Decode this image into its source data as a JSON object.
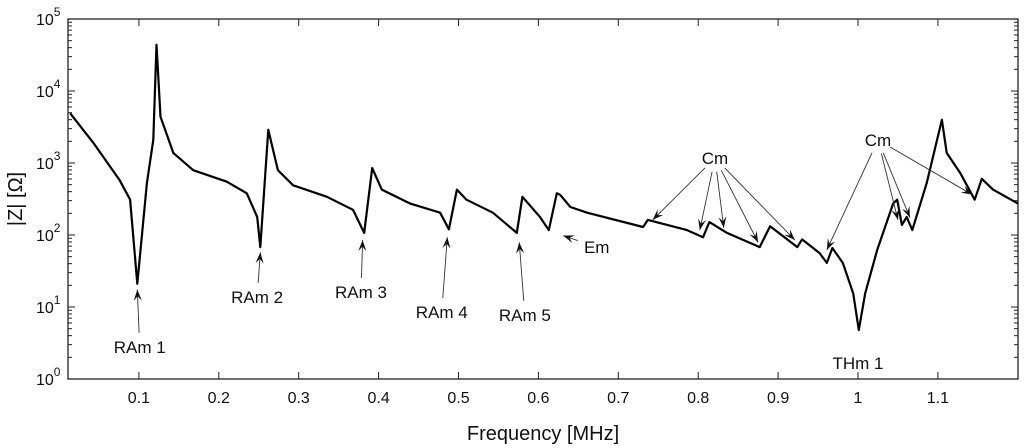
{
  "chart_data": {
    "type": "line",
    "xlabel": "Frequency [MHz]",
    "ylabel": "|Z| [Ω]",
    "xlim": [
      0.011,
      1.2
    ],
    "ylim": [
      1,
      100000
    ],
    "yscale": "log",
    "grid": false,
    "x_ticks": [
      0.1,
      0.2,
      0.3,
      0.4,
      0.5,
      0.6,
      0.7,
      0.8,
      0.9,
      1,
      1.1
    ],
    "x_tick_labels": [
      "0.1",
      "0.2",
      "0.3",
      "0.4",
      "0.5",
      "0.6",
      "0.7",
      "0.8",
      "0.9",
      "1",
      "1.1"
    ],
    "y_ticks": [
      {
        "base": "10",
        "exp": "0"
      },
      {
        "base": "10",
        "exp": "1"
      },
      {
        "base": "10",
        "exp": "2"
      },
      {
        "base": "10",
        "exp": "3"
      },
      {
        "base": "10",
        "exp": "4"
      },
      {
        "base": "10",
        "exp": "5"
      }
    ],
    "series": [
      {
        "color": "#000000",
        "points": [
          [
            0.014,
            4900
          ],
          [
            0.043,
            1900
          ],
          [
            0.076,
            575
          ],
          [
            0.089,
            310
          ],
          [
            0.098,
            21
          ],
          [
            0.11,
            525
          ],
          [
            0.118,
            2100
          ],
          [
            0.122,
            44000
          ],
          [
            0.127,
            4400
          ],
          [
            0.143,
            1380
          ],
          [
            0.168,
            795
          ],
          [
            0.21,
            550
          ],
          [
            0.235,
            380
          ],
          [
            0.248,
            178
          ],
          [
            0.252,
            68
          ],
          [
            0.262,
            2900
          ],
          [
            0.274,
            795
          ],
          [
            0.293,
            490
          ],
          [
            0.335,
            340
          ],
          [
            0.368,
            224
          ],
          [
            0.382,
            107
          ],
          [
            0.392,
            850
          ],
          [
            0.404,
            427
          ],
          [
            0.439,
            275
          ],
          [
            0.477,
            204
          ],
          [
            0.488,
            120
          ],
          [
            0.498,
            427
          ],
          [
            0.51,
            309
          ],
          [
            0.543,
            204
          ],
          [
            0.573,
            107
          ],
          [
            0.58,
            339
          ],
          [
            0.602,
            178
          ],
          [
            0.613,
            117
          ],
          [
            0.623,
            380
          ],
          [
            0.627,
            363
          ],
          [
            0.64,
            245
          ],
          [
            0.661,
            204
          ],
          [
            0.731,
            129
          ],
          [
            0.737,
            162
          ],
          [
            0.786,
            117
          ],
          [
            0.806,
            93
          ],
          [
            0.814,
            151
          ],
          [
            0.836,
            107
          ],
          [
            0.877,
            68
          ],
          [
            0.89,
            132
          ],
          [
            0.924,
            68
          ],
          [
            0.93,
            87
          ],
          [
            0.952,
            56
          ],
          [
            0.961,
            41
          ],
          [
            0.968,
            66
          ],
          [
            0.981,
            41
          ],
          [
            0.994,
            15.5
          ],
          [
            1.001,
            4.8
          ],
          [
            1.009,
            15.5
          ],
          [
            1.024,
            62
          ],
          [
            1.044,
            275
          ],
          [
            1.049,
            309
          ],
          [
            1.055,
            138
          ],
          [
            1.061,
            178
          ],
          [
            1.068,
            117
          ],
          [
            1.086,
            525
          ],
          [
            1.099,
            2100
          ],
          [
            1.105,
            3980
          ],
          [
            1.111,
            1380
          ],
          [
            1.128,
            724
          ],
          [
            1.146,
            309
          ],
          [
            1.155,
            603
          ],
          [
            1.169,
            427
          ],
          [
            1.2,
            275
          ]
        ]
      }
    ],
    "annotations": [
      {
        "text": "RAm 1",
        "label_at": [
          0.101,
          2.8
        ],
        "targets": [
          [
            0.098,
            17.4
          ]
        ]
      },
      {
        "text": "RAm 2",
        "label_at": [
          0.248,
          13.8
        ],
        "targets": [
          [
            0.252,
            57.5
          ]
        ]
      },
      {
        "text": "RAm 3",
        "label_at": [
          0.378,
          16.2
        ],
        "targets": [
          [
            0.38,
            85
          ]
        ]
      },
      {
        "text": "RAm 4",
        "label_at": [
          0.479,
          8.5
        ],
        "targets": [
          [
            0.486,
            93
          ]
        ]
      },
      {
        "text": "RAm 5",
        "label_at": [
          0.583,
          7.8
        ],
        "targets": [
          [
            0.576,
            79
          ]
        ]
      },
      {
        "text": "Em",
        "label_at": [
          0.673,
          68
        ],
        "targets": [
          [
            0.631,
            98
          ]
        ]
      },
      {
        "text": "Cm",
        "label_at": [
          0.821,
          1175
        ],
        "targets": [
          [
            0.743,
            162
          ],
          [
            0.802,
            117
          ],
          [
            0.832,
            126
          ],
          [
            0.875,
            79
          ],
          [
            0.921,
            85
          ]
        ]
      },
      {
        "text": "Cm",
        "label_at": [
          1.025,
          2090
        ],
        "targets": [
          [
            0.961,
            62
          ],
          [
            1.05,
            162
          ],
          [
            1.065,
            174
          ],
          [
            1.143,
            363
          ]
        ]
      },
      {
        "text": "THm 1",
        "label_at": [
          1.0,
          1.66
        ],
        "targets": []
      }
    ]
  }
}
